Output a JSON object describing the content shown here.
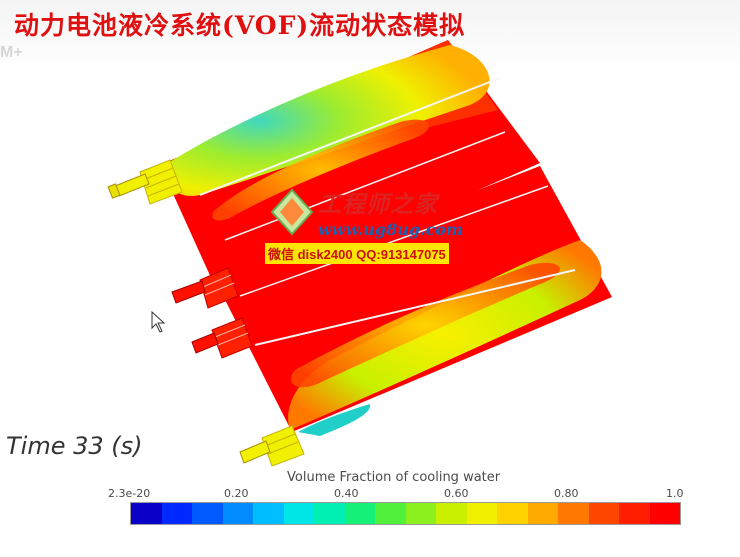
{
  "title": "动力电池液冷系统(VOF)流动状态模拟",
  "corner_mark": "M+",
  "time_label": "Time 33 (s)",
  "colorbar": {
    "title": "Volume Fraction of cooling water",
    "ticks": [
      "2.3e-20",
      "0.20",
      "0.40",
      "0.60",
      "0.80",
      "1.0"
    ],
    "colors": [
      "#0a00c8",
      "#0028ff",
      "#005aff",
      "#008cff",
      "#00beff",
      "#00e6e6",
      "#00f0b4",
      "#14f078",
      "#50f03c",
      "#8cf01e",
      "#c8f000",
      "#f0f000",
      "#ffd200",
      "#ffaa00",
      "#ff7800",
      "#ff4600",
      "#ff1e00",
      "#ff0000"
    ]
  },
  "watermark": {
    "logo_icon": "diamond-logo-icon",
    "brand": "工程师之家",
    "url": "www.ug8ug.com",
    "contact": "微信 disk2400 QQ:913147075"
  },
  "cursor_icon": "arrow-cursor-icon",
  "colors": {
    "fluid_red": "#ff0000",
    "title_red": "#e01010",
    "inlet_yellow": "#f0f000"
  }
}
